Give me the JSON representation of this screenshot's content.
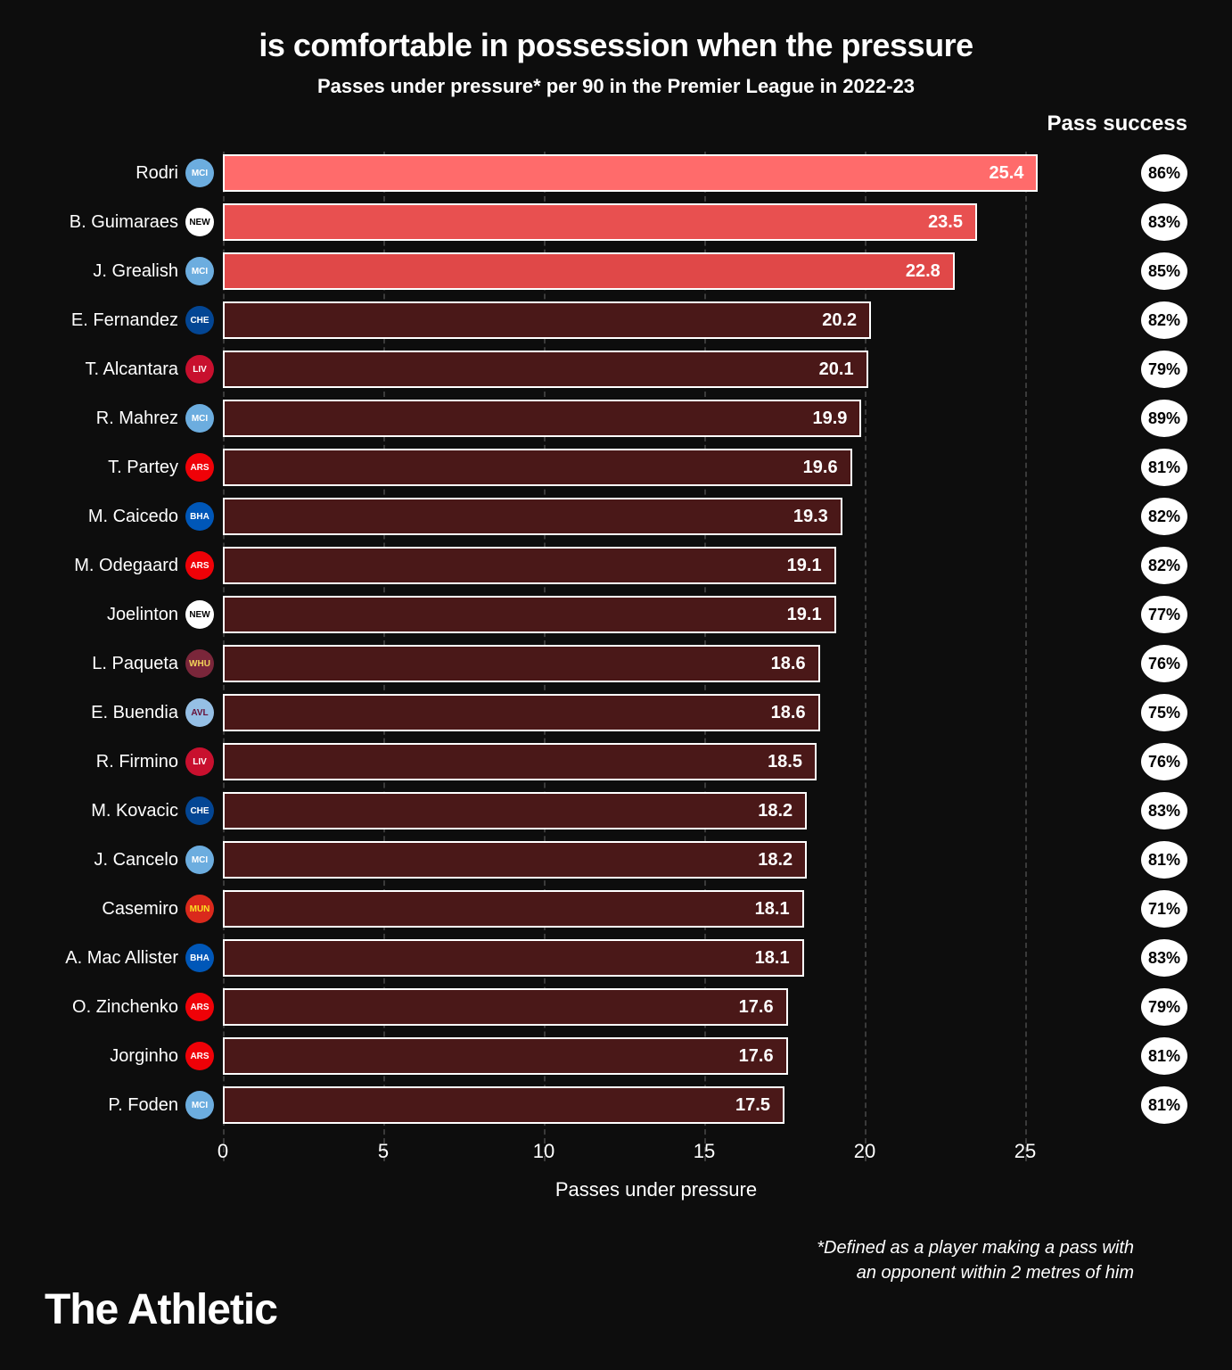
{
  "title": "is comfortable in possession when the pressure",
  "subtitle": "Passes under pressure* per 90 in the Premier League in 2022-23",
  "pass_success_header": "Pass success",
  "x_axis": {
    "title": "Passes under pressure",
    "ticks": [
      0,
      5,
      10,
      15,
      20,
      25
    ],
    "max": 27
  },
  "footnote_line1": "*Defined as a player making a pass with",
  "footnote_line2": "an opponent within 2 metres of him",
  "brand": "The Athletic",
  "colors": {
    "background": "#0d0d0d",
    "text": "#ffffff",
    "grid": "#3a3a3a",
    "bar_outline": "#ffffff",
    "badge_bg": "#ffffff",
    "badge_text": "#000000"
  },
  "bar_highlight_colors": [
    "#ff6b6b",
    "#e85050",
    "#e04848"
  ],
  "bar_default_color": "#4a1818",
  "crest_palette": {
    "man_city": {
      "bg": "#6caddf",
      "fg": "#ffffff",
      "txt": "MCI"
    },
    "newcastle": {
      "bg": "#ffffff",
      "fg": "#000000",
      "txt": "NEW"
    },
    "chelsea": {
      "bg": "#034694",
      "fg": "#ffffff",
      "txt": "CHE"
    },
    "liverpool": {
      "bg": "#c8102e",
      "fg": "#ffffff",
      "txt": "LIV"
    },
    "arsenal": {
      "bg": "#ef0107",
      "fg": "#ffffff",
      "txt": "ARS"
    },
    "brighton": {
      "bg": "#0057b8",
      "fg": "#ffffff",
      "txt": "BHA"
    },
    "west_ham": {
      "bg": "#7a263a",
      "fg": "#f3d459",
      "txt": "WHU"
    },
    "aston_villa": {
      "bg": "#95bfe5",
      "fg": "#670e36",
      "txt": "AVL"
    },
    "man_utd": {
      "bg": "#da291c",
      "fg": "#fbe122",
      "txt": "MUN"
    }
  },
  "rows": [
    {
      "name": "Rodri",
      "club": "man_city",
      "value": 25.4,
      "pct": "86%",
      "highlight": 0
    },
    {
      "name": "B. Guimaraes",
      "club": "newcastle",
      "value": 23.5,
      "pct": "83%",
      "highlight": 1
    },
    {
      "name": "J. Grealish",
      "club": "man_city",
      "value": 22.8,
      "pct": "85%",
      "highlight": 2
    },
    {
      "name": "E. Fernandez",
      "club": "chelsea",
      "value": 20.2,
      "pct": "82%"
    },
    {
      "name": "T. Alcantara",
      "club": "liverpool",
      "value": 20.1,
      "pct": "79%"
    },
    {
      "name": "R. Mahrez",
      "club": "man_city",
      "value": 19.9,
      "pct": "89%"
    },
    {
      "name": "T. Partey",
      "club": "arsenal",
      "value": 19.6,
      "pct": "81%"
    },
    {
      "name": "M. Caicedo",
      "club": "brighton",
      "value": 19.3,
      "pct": "82%"
    },
    {
      "name": "M. Odegaard",
      "club": "arsenal",
      "value": 19.1,
      "pct": "82%"
    },
    {
      "name": "Joelinton",
      "club": "newcastle",
      "value": 19.1,
      "pct": "77%"
    },
    {
      "name": "L. Paqueta",
      "club": "west_ham",
      "value": 18.6,
      "pct": "76%"
    },
    {
      "name": "E. Buendia",
      "club": "aston_villa",
      "value": 18.6,
      "pct": "75%"
    },
    {
      "name": "R. Firmino",
      "club": "liverpool",
      "value": 18.5,
      "pct": "76%"
    },
    {
      "name": "M. Kovacic",
      "club": "chelsea",
      "value": 18.2,
      "pct": "83%"
    },
    {
      "name": "J. Cancelo",
      "club": "man_city",
      "value": 18.2,
      "pct": "81%"
    },
    {
      "name": "Casemiro",
      "club": "man_utd",
      "value": 18.1,
      "pct": "71%"
    },
    {
      "name": "A. Mac Allister",
      "club": "brighton",
      "value": 18.1,
      "pct": "83%"
    },
    {
      "name": "O. Zinchenko",
      "club": "arsenal",
      "value": 17.6,
      "pct": "79%"
    },
    {
      "name": "Jorginho",
      "club": "arsenal",
      "value": 17.6,
      "pct": "81%"
    },
    {
      "name": "P. Foden",
      "club": "man_city",
      "value": 17.5,
      "pct": "81%"
    }
  ]
}
